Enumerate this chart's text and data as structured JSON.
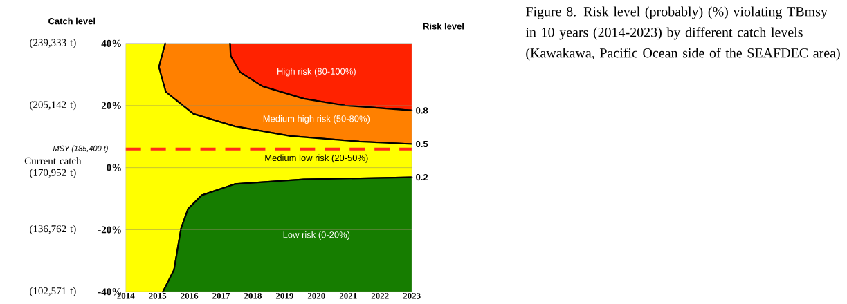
{
  "chart_data": {
    "type": "area",
    "title": "Figure 8.  Risk level (probably) (%) violating TBmsy in 10 years (2014-2023) by different catch levels (Kawakawa, Pacific Ocean side of the SEAFDEC area)",
    "ylabel": "Catch level",
    "xlim": [
      2014,
      2023
    ],
    "xticks": [
      2014,
      2015,
      2016,
      2017,
      2018,
      2019,
      2020,
      2021,
      2022,
      2023
    ],
    "ylim": [
      102571,
      239333
    ],
    "yticks": [
      {
        "value": 102571,
        "label": "(102,571 t)"
      },
      {
        "value": 136762,
        "label": "(136,762 t)"
      },
      {
        "value": 170952,
        "label": "Current catch (170,952 t)"
      },
      {
        "value": 205142,
        "label": "(205,142 t)"
      },
      {
        "value": 239333,
        "label": "(239,333 t)"
      }
    ],
    "y2lim": [
      -40,
      40
    ],
    "y2ticks": [
      {
        "value": -40,
        "label": "-40%"
      },
      {
        "value": -20,
        "label": "-20%"
      },
      {
        "value": 0,
        "label": "0%"
      },
      {
        "value": 20,
        "label": "20%"
      },
      {
        "value": 40,
        "label": "40%"
      }
    ],
    "grid": "y",
    "series": [
      {
        "name": "High risk (80-100%)",
        "axis": "y2",
        "color": "#ff2200",
        "x": [
          2017.28,
          2017.3,
          2017.6,
          2018.3,
          2019.6,
          2020.9,
          2023,
          2023
        ],
        "values": [
          40,
          36,
          30.7,
          26.2,
          22.2,
          20,
          18.4,
          40
        ]
      },
      {
        "name": "Medium high risk (50-80%)",
        "axis": "y2",
        "color": "#ff8000",
        "x": [
          2015.24,
          2015.04,
          2015.26,
          2016.13,
          2017.43,
          2019.17,
          2021.35,
          2023,
          2023,
          2020.9,
          2019.6,
          2018.3,
          2017.6,
          2017.3,
          2017.28
        ],
        "values": [
          40,
          32.4,
          24.4,
          17.3,
          13.3,
          10.2,
          8.4,
          7.6,
          18.4,
          20,
          22.2,
          26.2,
          30.7,
          36,
          40
        ]
      },
      {
        "name": "Medium low risk (20-50%)",
        "axis": "y2",
        "color": "#ffff00",
        "x": [
          2014,
          2015.24,
          2015.04,
          2015.26,
          2016.13,
          2017.43,
          2019.17,
          2021.35,
          2023,
          2023,
          2019.6,
          2017.43,
          2016.39,
          2015.96,
          2015.74,
          2015.52,
          2015.17,
          2014
        ],
        "values": [
          40,
          40,
          32.4,
          24.4,
          17.3,
          13.3,
          10.2,
          8.4,
          7.6,
          -3.1,
          -3.8,
          -5.3,
          -8.9,
          -13.3,
          -19.6,
          -32.9,
          -40,
          -40
        ]
      },
      {
        "name": "Low risk (0-20%)",
        "axis": "y2",
        "color": "#167d00",
        "x": [
          2015.17,
          2015.52,
          2015.74,
          2015.96,
          2016.39,
          2017.43,
          2019.6,
          2023,
          2023
        ],
        "values": [
          -40,
          -32.9,
          -19.6,
          -13.3,
          -8.9,
          -5.3,
          -3.8,
          -3.1,
          -40
        ]
      }
    ],
    "ref_lines": [
      {
        "axis": "y2",
        "value": 6,
        "label": "MSY (185,400 t)",
        "color": "#ff2a1a",
        "line_style": "dashed"
      }
    ],
    "annotations": [
      "Risk level",
      "0.8",
      "0.5",
      "0.2"
    ]
  }
}
